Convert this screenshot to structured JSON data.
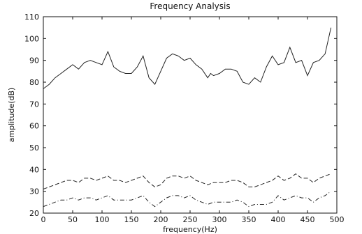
{
  "chart_data": {
    "type": "line",
    "title": "Frequency Analysis",
    "xlabel": "frequency(Hz)",
    "ylabel": "amplitude(dB)",
    "xlim": [
      0,
      500
    ],
    "ylim": [
      20,
      110
    ],
    "x_ticks": [
      0,
      50,
      100,
      150,
      200,
      250,
      300,
      350,
      400,
      450,
      500
    ],
    "y_ticks": [
      20,
      30,
      40,
      50,
      60,
      70,
      80,
      90,
      100,
      110
    ],
    "grid": false,
    "legend": "none",
    "colors": {
      "axis": "#111111",
      "line": "#222222"
    },
    "series": [
      {
        "style": "solid",
        "x": [
          0,
          10,
          20,
          30,
          40,
          50,
          60,
          70,
          80,
          90,
          100,
          110,
          120,
          130,
          140,
          150,
          160,
          170,
          180,
          190,
          200,
          210,
          220,
          230,
          240,
          250,
          260,
          270,
          280,
          285,
          290,
          300,
          310,
          320,
          330,
          340,
          350,
          360,
          370,
          380,
          390,
          400,
          410,
          420,
          430,
          440,
          450,
          460,
          470,
          480,
          490
        ],
        "y": [
          77,
          79,
          82,
          84,
          86,
          88,
          86,
          89,
          90,
          89,
          88,
          94,
          87,
          85,
          84,
          84,
          87,
          92,
          82,
          79,
          85,
          91,
          93,
          92,
          90,
          91,
          88,
          86,
          82,
          84,
          83,
          84,
          86,
          86,
          85,
          80,
          79,
          82,
          80,
          87,
          92,
          88,
          89,
          96,
          89,
          90,
          83,
          89,
          90,
          93,
          105
        ]
      },
      {
        "style": "dashed",
        "x": [
          0,
          10,
          20,
          30,
          40,
          50,
          60,
          70,
          80,
          90,
          100,
          110,
          120,
          130,
          140,
          150,
          160,
          170,
          180,
          190,
          200,
          210,
          220,
          230,
          240,
          250,
          260,
          270,
          280,
          290,
          300,
          310,
          320,
          330,
          340,
          350,
          360,
          370,
          380,
          390,
          400,
          410,
          420,
          430,
          440,
          450,
          460,
          470,
          480,
          490
        ],
        "y": [
          31,
          32,
          33,
          34,
          35,
          35,
          34,
          36,
          36,
          35,
          36,
          37,
          35,
          35,
          34,
          35,
          36,
          37,
          34,
          32,
          33,
          36,
          37,
          37,
          36,
          37,
          35,
          34,
          33,
          34,
          34,
          34,
          35,
          35,
          34,
          32,
          32,
          33,
          34,
          35,
          37,
          35,
          36,
          38,
          36,
          36,
          34,
          36,
          37,
          38
        ]
      },
      {
        "style": "dashdot",
        "x": [
          0,
          10,
          20,
          30,
          40,
          50,
          60,
          70,
          80,
          90,
          100,
          110,
          120,
          130,
          140,
          150,
          160,
          170,
          180,
          190,
          200,
          210,
          220,
          230,
          240,
          250,
          260,
          270,
          280,
          290,
          300,
          310,
          320,
          330,
          340,
          350,
          360,
          370,
          380,
          390,
          400,
          410,
          420,
          430,
          440,
          450,
          460,
          470,
          480,
          490
        ],
        "y": [
          23,
          24,
          25,
          26,
          26,
          27,
          26,
          27,
          27,
          26,
          27,
          28,
          26,
          26,
          26,
          26,
          27,
          28,
          25,
          23,
          25,
          27,
          28,
          28,
          27,
          28,
          26,
          25,
          24,
          25,
          25,
          25,
          25,
          26,
          25,
          23,
          24,
          24,
          24,
          25,
          28,
          26,
          27,
          28,
          27,
          27,
          25,
          27,
          28,
          30
        ]
      }
    ]
  }
}
